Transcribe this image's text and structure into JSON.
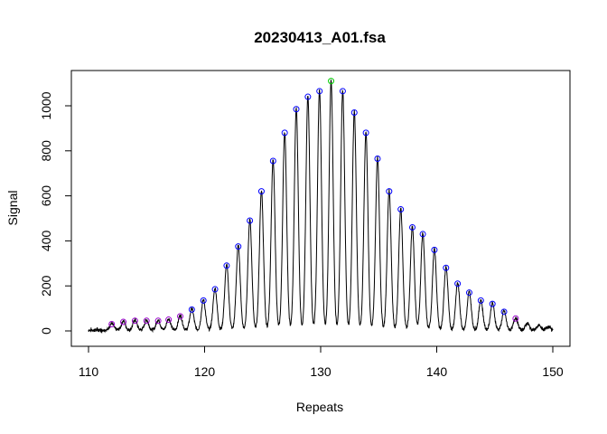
{
  "chart_data": {
    "type": "line",
    "title": "20230413_A01.fsa",
    "xlabel": "Repeats",
    "ylabel": "Signal",
    "xlim": [
      110,
      150
    ],
    "ylim": [
      -50,
      1130
    ],
    "xticks": [
      "110",
      "120",
      "130",
      "140",
      "150"
    ],
    "yticks": [
      "0",
      "200",
      "400",
      "600",
      "800",
      "1000"
    ],
    "grid": false,
    "line_color": "#000000",
    "marker_colors": {
      "blue": "#0000ff",
      "green": "#00cc00",
      "purple": "#9900cc"
    },
    "peaks": [
      {
        "x": 112.0,
        "y": 30,
        "color": "purple"
      },
      {
        "x": 113.0,
        "y": 40,
        "color": "purple"
      },
      {
        "x": 114.0,
        "y": 45,
        "color": "purple"
      },
      {
        "x": 115.0,
        "y": 45,
        "color": "purple"
      },
      {
        "x": 116.0,
        "y": 45,
        "color": "purple"
      },
      {
        "x": 116.9,
        "y": 50,
        "color": "purple"
      },
      {
        "x": 117.9,
        "y": 65,
        "color": "purple"
      },
      {
        "x": 118.9,
        "y": 95,
        "color": "blue"
      },
      {
        "x": 119.9,
        "y": 135,
        "color": "blue"
      },
      {
        "x": 120.9,
        "y": 185,
        "color": "blue"
      },
      {
        "x": 121.9,
        "y": 290,
        "color": "blue"
      },
      {
        "x": 122.9,
        "y": 375,
        "color": "blue"
      },
      {
        "x": 123.9,
        "y": 490,
        "color": "blue"
      },
      {
        "x": 124.9,
        "y": 620,
        "color": "blue"
      },
      {
        "x": 125.9,
        "y": 755,
        "color": "blue"
      },
      {
        "x": 126.9,
        "y": 880,
        "color": "blue"
      },
      {
        "x": 127.9,
        "y": 985,
        "color": "blue"
      },
      {
        "x": 128.9,
        "y": 1040,
        "color": "blue"
      },
      {
        "x": 129.9,
        "y": 1065,
        "color": "blue"
      },
      {
        "x": 130.9,
        "y": 1110,
        "color": "green"
      },
      {
        "x": 131.9,
        "y": 1065,
        "color": "blue"
      },
      {
        "x": 132.9,
        "y": 970,
        "color": "blue"
      },
      {
        "x": 133.9,
        "y": 880,
        "color": "blue"
      },
      {
        "x": 134.9,
        "y": 765,
        "color": "blue"
      },
      {
        "x": 135.9,
        "y": 620,
        "color": "blue"
      },
      {
        "x": 136.9,
        "y": 540,
        "color": "blue"
      },
      {
        "x": 137.9,
        "y": 460,
        "color": "blue"
      },
      {
        "x": 138.8,
        "y": 430,
        "color": "blue"
      },
      {
        "x": 139.8,
        "y": 360,
        "color": "blue"
      },
      {
        "x": 140.8,
        "y": 280,
        "color": "blue"
      },
      {
        "x": 141.8,
        "y": 210,
        "color": "blue"
      },
      {
        "x": 142.8,
        "y": 170,
        "color": "blue"
      },
      {
        "x": 143.8,
        "y": 135,
        "color": "blue"
      },
      {
        "x": 144.8,
        "y": 120,
        "color": "blue"
      },
      {
        "x": 145.8,
        "y": 85,
        "color": "blue"
      },
      {
        "x": 146.8,
        "y": 55,
        "color": "purple"
      },
      {
        "x": 147.8,
        "y": 30,
        "color": "none"
      },
      {
        "x": 148.8,
        "y": 20,
        "color": "none"
      },
      {
        "x": 149.6,
        "y": 15,
        "color": "none"
      }
    ]
  }
}
